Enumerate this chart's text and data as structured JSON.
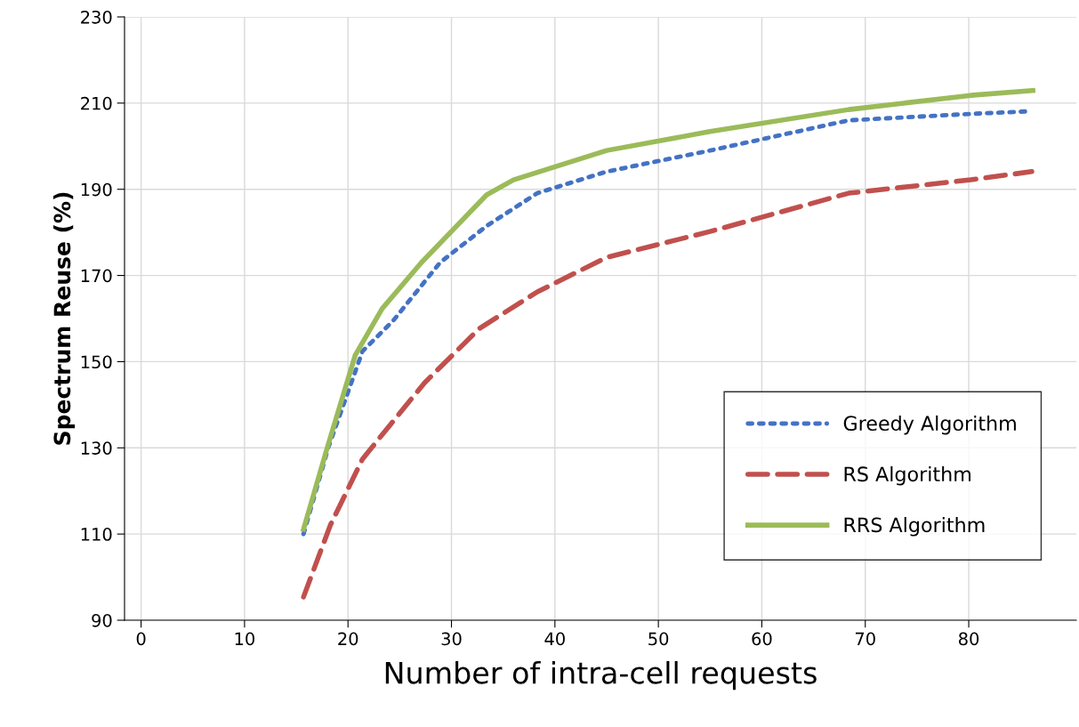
{
  "chart_data": {
    "type": "line",
    "xlabel": "Number of intra-cell requests",
    "ylabel": "Spectrum Reuse (%)",
    "xlim": [
      -1.6,
      90.4
    ],
    "xticks": [
      0,
      10,
      20,
      30,
      40,
      50,
      60,
      70,
      80
    ],
    "ylim": [
      90,
      230
    ],
    "yticks": [
      90,
      110,
      130,
      150,
      170,
      190,
      210,
      230
    ],
    "grid": true,
    "legend": "bottom right",
    "series": [
      {
        "name": "Greedy Algorithm",
        "color": "#4472c4",
        "line_style": "dotted",
        "x": [
          15.7,
          18.1,
          21.4,
          24.4,
          28.9,
          33.4,
          38.3,
          45.0,
          55.0,
          68.4,
          80.2,
          85.9
        ],
        "values": [
          110,
          130.1,
          152.4,
          159.6,
          173.0,
          181.5,
          189.1,
          194.1,
          199.0,
          206.0,
          207.5,
          208.1
        ]
      },
      {
        "name": "RS Algorithm",
        "color": "#c0504d",
        "line_style": "dashed",
        "x": [
          15.7,
          18.3,
          21.4,
          24.1,
          27.4,
          32.7,
          38.3,
          45.0,
          55.0,
          68.4,
          80.2,
          86.1
        ],
        "values": [
          95.4,
          112.1,
          127.4,
          135.4,
          145.1,
          157.7,
          166.2,
          174.2,
          180.2,
          189.1,
          192.2,
          194.1
        ]
      },
      {
        "name": "RRS Algorithm",
        "color": "#9bbb59",
        "line_style": "solid",
        "x": [
          15.7,
          18.1,
          20.7,
          23.3,
          27.1,
          33.4,
          36.0,
          45.0,
          55.0,
          68.4,
          80.2,
          86.2
        ],
        "values": [
          111.1,
          130.9,
          151.5,
          162.3,
          173.0,
          188.7,
          192.2,
          199.0,
          203.4,
          208.5,
          211.8,
          212.9
        ]
      }
    ]
  }
}
